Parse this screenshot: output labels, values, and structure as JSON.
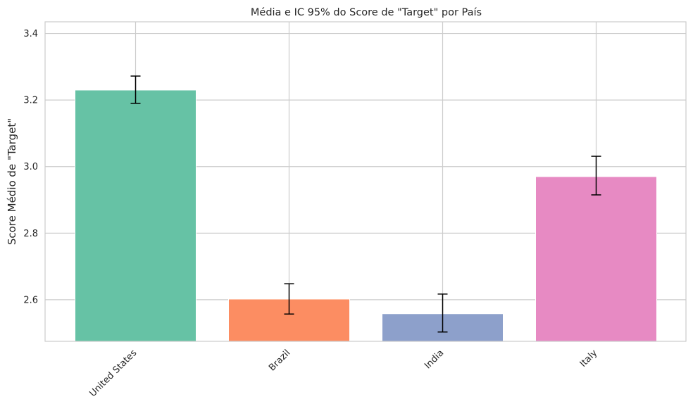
{
  "chart_data": {
    "type": "bar",
    "title": "Média e IC 95% do Score de \"Target\" por País",
    "xlabel": "",
    "ylabel": "Score Médio de \"Target\"",
    "categories": [
      "United States",
      "Brazil",
      "India",
      "Italy"
    ],
    "values": [
      3.23,
      2.602,
      2.558,
      2.97
    ],
    "ci_low": [
      3.19,
      2.557,
      2.503,
      2.915
    ],
    "ci_high": [
      3.272,
      2.648,
      2.617,
      3.031
    ],
    "colors": [
      "#66c2a5",
      "#fc8d62",
      "#8da0cb",
      "#e78ac3"
    ],
    "ylim": [
      2.475,
      3.435
    ],
    "yticks": [
      "2.6",
      "2.8",
      "3.0",
      "3.2",
      "3.4"
    ],
    "grid": true
  }
}
